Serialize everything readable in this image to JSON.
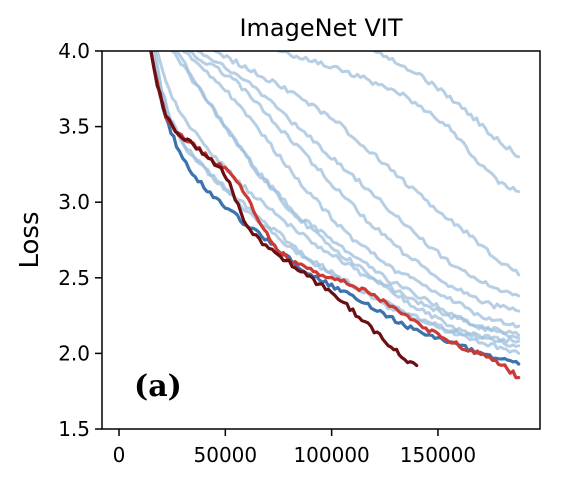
{
  "chart_data": {
    "type": "line",
    "title": "ImageNet VIT",
    "xlabel": "",
    "ylabel": "Loss",
    "panel_label": "(a)",
    "xlim": [
      -8000,
      198000
    ],
    "ylim": [
      1.5,
      4.0
    ],
    "x_ticks": [
      0,
      50000,
      100000,
      150000
    ],
    "x_tick_labels": [
      "0",
      "50000",
      "100000",
      "150000"
    ],
    "y_ticks": [
      1.5,
      2.0,
      2.5,
      3.0,
      3.5,
      4.0
    ],
    "y_tick_labels": [
      "1.5",
      "2.0",
      "2.5",
      "3.0",
      "3.5",
      "4.0"
    ],
    "grid": false,
    "legend": "none",
    "colors": {
      "light_blue": "#9fbfdc",
      "blue": "#3a73ad",
      "red": "#cc3a33",
      "dark_red": "#6b0f12"
    },
    "series": [
      {
        "color": "light_blue",
        "x": [
          25000,
          40000,
          60000,
          80000,
          100000,
          120000,
          140000,
          160000,
          175000,
          188000
        ],
        "y": [
          4.0,
          3.7,
          3.3,
          2.95,
          2.7,
          2.5,
          2.3,
          2.15,
          2.1,
          2.08
        ]
      },
      {
        "color": "light_blue",
        "x": [
          27000,
          45000,
          65000,
          85000,
          105000,
          125000,
          145000,
          165000,
          188000
        ],
        "y": [
          4.0,
          3.6,
          3.2,
          2.9,
          2.7,
          2.5,
          2.35,
          2.2,
          2.12
        ]
      },
      {
        "color": "light_blue",
        "x": [
          30000,
          50000,
          70000,
          90000,
          110000,
          130000,
          150000,
          170000,
          188000
        ],
        "y": [
          4.0,
          3.75,
          3.4,
          3.05,
          2.75,
          2.55,
          2.4,
          2.25,
          2.18
        ]
      },
      {
        "color": "light_blue",
        "x": [
          33000,
          55000,
          75000,
          95000,
          115000,
          135000,
          155000,
          175000,
          188000
        ],
        "y": [
          4.0,
          3.8,
          3.5,
          3.2,
          2.9,
          2.65,
          2.45,
          2.32,
          2.28
        ]
      },
      {
        "color": "light_blue",
        "x": [
          37000,
          60000,
          80000,
          100000,
          120000,
          140000,
          160000,
          178000,
          188000
        ],
        "y": [
          4.0,
          3.8,
          3.55,
          3.3,
          3.05,
          2.78,
          2.55,
          2.42,
          2.38
        ]
      },
      {
        "color": "light_blue",
        "x": [
          45000,
          65000,
          85000,
          105000,
          125000,
          145000,
          165000,
          180000,
          188000
        ],
        "y": [
          4.0,
          3.85,
          3.7,
          3.5,
          3.25,
          3.0,
          2.78,
          2.6,
          2.52
        ]
      },
      {
        "color": "light_blue",
        "x": [
          75000,
          95000,
          115000,
          135000,
          155000,
          170000,
          180000,
          188000
        ],
        "y": [
          4.0,
          3.92,
          3.82,
          3.7,
          3.5,
          3.25,
          3.12,
          3.07
        ]
      },
      {
        "color": "light_blue",
        "x": [
          120000,
          140000,
          160000,
          175000,
          188000
        ],
        "y": [
          4.0,
          3.85,
          3.65,
          3.45,
          3.3
        ]
      },
      {
        "color": "light_blue",
        "x": [
          17000,
          20000,
          25000,
          35000,
          50000,
          70000,
          90000,
          110000,
          130000,
          150000,
          170000,
          188000
        ],
        "y": [
          4.0,
          3.75,
          3.5,
          3.3,
          3.1,
          2.85,
          2.62,
          2.45,
          2.3,
          2.18,
          2.1,
          2.05
        ]
      },
      {
        "color": "light_blue",
        "x": [
          18000,
          22000,
          28000,
          40000,
          55000,
          75000,
          95000,
          115000,
          135000,
          155000,
          175000,
          188000
        ],
        "y": [
          4.0,
          3.8,
          3.6,
          3.38,
          3.15,
          2.9,
          2.7,
          2.52,
          2.38,
          2.25,
          2.15,
          2.1
        ]
      },
      {
        "color": "light_blue",
        "x": [
          16000,
          19000,
          24000,
          32000,
          45000,
          65000,
          85000,
          105000,
          125000,
          145000,
          165000,
          188000
        ],
        "y": [
          4.0,
          3.8,
          3.55,
          3.35,
          3.15,
          2.88,
          2.65,
          2.48,
          2.32,
          2.2,
          2.1,
          2.0
        ]
      },
      {
        "color": "blue",
        "x": [
          15000,
          18000,
          22000,
          27000,
          33000,
          40000,
          50000,
          60000,
          70000,
          80000,
          90000,
          100000,
          110000,
          120000,
          130000,
          140000,
          150000,
          160000,
          170000,
          180000,
          188000
        ],
        "y": [
          4.0,
          3.78,
          3.55,
          3.38,
          3.22,
          3.1,
          2.97,
          2.85,
          2.75,
          2.63,
          2.52,
          2.45,
          2.37,
          2.3,
          2.22,
          2.15,
          2.1,
          2.05,
          2.0,
          1.96,
          1.93
        ]
      },
      {
        "color": "red",
        "x": [
          15000,
          18000,
          22000,
          28000,
          35000,
          42000,
          50000,
          57000,
          62000,
          67000,
          72000,
          80000,
          90000,
          100000,
          110000,
          120000,
          130000,
          140000,
          150000,
          160000,
          170000,
          180000,
          188000
        ],
        "y": [
          4.0,
          3.78,
          3.57,
          3.45,
          3.38,
          3.3,
          3.22,
          3.12,
          2.98,
          2.85,
          2.72,
          2.62,
          2.55,
          2.5,
          2.45,
          2.38,
          2.3,
          2.2,
          2.12,
          2.05,
          2.0,
          1.93,
          1.84
        ]
      },
      {
        "color": "dark_red",
        "x": [
          15000,
          18000,
          22000,
          28000,
          35000,
          42000,
          48000,
          52000,
          56000,
          60000,
          66000,
          72000,
          80000,
          90000,
          100000,
          110000,
          120000,
          128000,
          133000,
          137000,
          140000
        ],
        "y": [
          4.0,
          3.78,
          3.57,
          3.45,
          3.38,
          3.3,
          3.22,
          3.12,
          2.98,
          2.85,
          2.75,
          2.68,
          2.6,
          2.5,
          2.4,
          2.28,
          2.15,
          2.05,
          1.98,
          1.93,
          1.92
        ]
      }
    ]
  }
}
